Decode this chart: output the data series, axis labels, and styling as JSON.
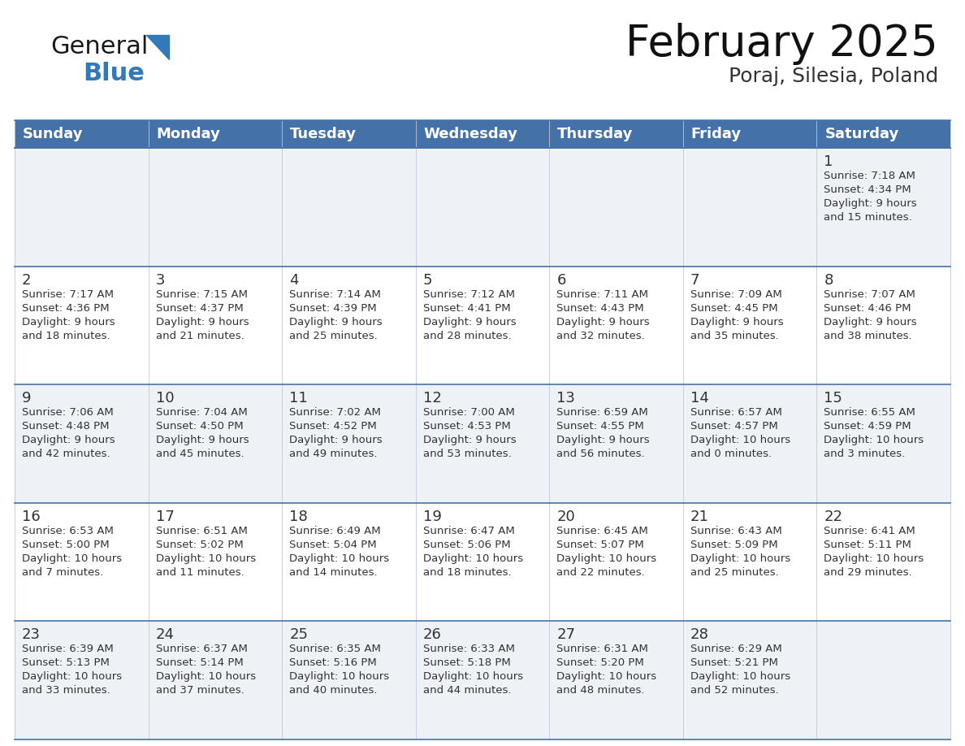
{
  "title": "February 2025",
  "subtitle": "Poraj, Silesia, Poland",
  "days_of_week": [
    "Sunday",
    "Monday",
    "Tuesday",
    "Wednesday",
    "Thursday",
    "Friday",
    "Saturday"
  ],
  "header_bg": "#4472a8",
  "header_text": "#ffffff",
  "cell_bg_odd": "#eef2f7",
  "cell_bg_even": "#ffffff",
  "row_line_color": "#4472a8",
  "text_color": "#333333",
  "day_number_color": "#333333",
  "calendar_data": [
    [
      null,
      null,
      null,
      null,
      null,
      null,
      {
        "day": 1,
        "sunrise": "7:18 AM",
        "sunset": "4:34 PM",
        "daylight": "9 hours and 15 minutes."
      }
    ],
    [
      {
        "day": 2,
        "sunrise": "7:17 AM",
        "sunset": "4:36 PM",
        "daylight": "9 hours and 18 minutes."
      },
      {
        "day": 3,
        "sunrise": "7:15 AM",
        "sunset": "4:37 PM",
        "daylight": "9 hours and 21 minutes."
      },
      {
        "day": 4,
        "sunrise": "7:14 AM",
        "sunset": "4:39 PM",
        "daylight": "9 hours and 25 minutes."
      },
      {
        "day": 5,
        "sunrise": "7:12 AM",
        "sunset": "4:41 PM",
        "daylight": "9 hours and 28 minutes."
      },
      {
        "day": 6,
        "sunrise": "7:11 AM",
        "sunset": "4:43 PM",
        "daylight": "9 hours and 32 minutes."
      },
      {
        "day": 7,
        "sunrise": "7:09 AM",
        "sunset": "4:45 PM",
        "daylight": "9 hours and 35 minutes."
      },
      {
        "day": 8,
        "sunrise": "7:07 AM",
        "sunset": "4:46 PM",
        "daylight": "9 hours and 38 minutes."
      }
    ],
    [
      {
        "day": 9,
        "sunrise": "7:06 AM",
        "sunset": "4:48 PM",
        "daylight": "9 hours and 42 minutes."
      },
      {
        "day": 10,
        "sunrise": "7:04 AM",
        "sunset": "4:50 PM",
        "daylight": "9 hours and 45 minutes."
      },
      {
        "day": 11,
        "sunrise": "7:02 AM",
        "sunset": "4:52 PM",
        "daylight": "9 hours and 49 minutes."
      },
      {
        "day": 12,
        "sunrise": "7:00 AM",
        "sunset": "4:53 PM",
        "daylight": "9 hours and 53 minutes."
      },
      {
        "day": 13,
        "sunrise": "6:59 AM",
        "sunset": "4:55 PM",
        "daylight": "9 hours and 56 minutes."
      },
      {
        "day": 14,
        "sunrise": "6:57 AM",
        "sunset": "4:57 PM",
        "daylight": "10 hours and 0 minutes."
      },
      {
        "day": 15,
        "sunrise": "6:55 AM",
        "sunset": "4:59 PM",
        "daylight": "10 hours and 3 minutes."
      }
    ],
    [
      {
        "day": 16,
        "sunrise": "6:53 AM",
        "sunset": "5:00 PM",
        "daylight": "10 hours and 7 minutes."
      },
      {
        "day": 17,
        "sunrise": "6:51 AM",
        "sunset": "5:02 PM",
        "daylight": "10 hours and 11 minutes."
      },
      {
        "day": 18,
        "sunrise": "6:49 AM",
        "sunset": "5:04 PM",
        "daylight": "10 hours and 14 minutes."
      },
      {
        "day": 19,
        "sunrise": "6:47 AM",
        "sunset": "5:06 PM",
        "daylight": "10 hours and 18 minutes."
      },
      {
        "day": 20,
        "sunrise": "6:45 AM",
        "sunset": "5:07 PM",
        "daylight": "10 hours and 22 minutes."
      },
      {
        "day": 21,
        "sunrise": "6:43 AM",
        "sunset": "5:09 PM",
        "daylight": "10 hours and 25 minutes."
      },
      {
        "day": 22,
        "sunrise": "6:41 AM",
        "sunset": "5:11 PM",
        "daylight": "10 hours and 29 minutes."
      }
    ],
    [
      {
        "day": 23,
        "sunrise": "6:39 AM",
        "sunset": "5:13 PM",
        "daylight": "10 hours and 33 minutes."
      },
      {
        "day": 24,
        "sunrise": "6:37 AM",
        "sunset": "5:14 PM",
        "daylight": "10 hours and 37 minutes."
      },
      {
        "day": 25,
        "sunrise": "6:35 AM",
        "sunset": "5:16 PM",
        "daylight": "10 hours and 40 minutes."
      },
      {
        "day": 26,
        "sunrise": "6:33 AM",
        "sunset": "5:18 PM",
        "daylight": "10 hours and 44 minutes."
      },
      {
        "day": 27,
        "sunrise": "6:31 AM",
        "sunset": "5:20 PM",
        "daylight": "10 hours and 48 minutes."
      },
      {
        "day": 28,
        "sunrise": "6:29 AM",
        "sunset": "5:21 PM",
        "daylight": "10 hours and 52 minutes."
      },
      null
    ]
  ],
  "logo_general_color": "#1a1a1a",
  "logo_blue_color": "#3378b8",
  "title_fontsize": 38,
  "subtitle_fontsize": 18,
  "header_fontsize": 13,
  "day_number_fontsize": 13,
  "cell_text_fontsize": 9.5
}
